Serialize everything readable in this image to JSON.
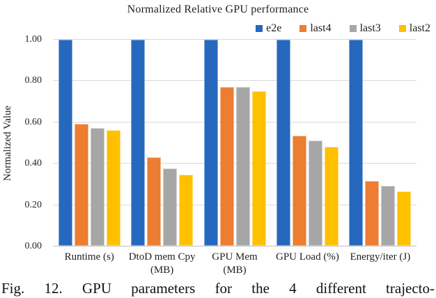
{
  "title": "Normalized Relative GPU performance",
  "caption": "Fig. 12. GPU parameters for the 4 different trajecto-",
  "y_axis_title": "Normalized Value",
  "colors": {
    "e2e": "#2568BE",
    "last4": "#ED7D31",
    "last3": "#A6A6A6",
    "last2": "#FFC000",
    "gridline": "#D9D9D9",
    "axis_line": "#BFBFBF",
    "text": "#1F1F1F"
  },
  "chart_data": {
    "type": "bar",
    "title": "Normalized Relative GPU performance",
    "xlabel": "",
    "ylabel": "Normalized Value",
    "ylim": [
      0,
      1.0
    ],
    "grid": true,
    "legend_position": "top-right",
    "yticks": [
      0.0,
      0.2,
      0.4,
      0.6,
      0.8,
      1.0
    ],
    "ytick_labels": [
      "0.00",
      "0.20",
      "0.40",
      "0.60",
      "0.80",
      "1.00"
    ],
    "categories": [
      "Runtime (s)",
      "DtoD mem Cpy (MB)",
      "GPU Mem (MB)",
      "GPU Load (%)",
      "Energy/iter (J)"
    ],
    "category_label_lines": [
      [
        "Runtime (s)"
      ],
      [
        "DtoD mem Cpy",
        "(MB)"
      ],
      [
        "GPU Mem",
        "(MB)"
      ],
      [
        "GPU Load (%)"
      ],
      [
        "Energy/iter (J)"
      ]
    ],
    "series": [
      {
        "name": "e2e",
        "color": "#2568BE",
        "values": [
          1.0,
          1.0,
          1.0,
          1.0,
          1.0
        ]
      },
      {
        "name": "last4",
        "color": "#ED7D31",
        "values": [
          0.59,
          0.43,
          0.77,
          0.535,
          0.315
        ]
      },
      {
        "name": "last3",
        "color": "#A6A6A6",
        "values": [
          0.57,
          0.375,
          0.77,
          0.51,
          0.29
        ]
      },
      {
        "name": "last2",
        "color": "#FFC000",
        "values": [
          0.56,
          0.345,
          0.75,
          0.48,
          0.265
        ]
      }
    ]
  }
}
